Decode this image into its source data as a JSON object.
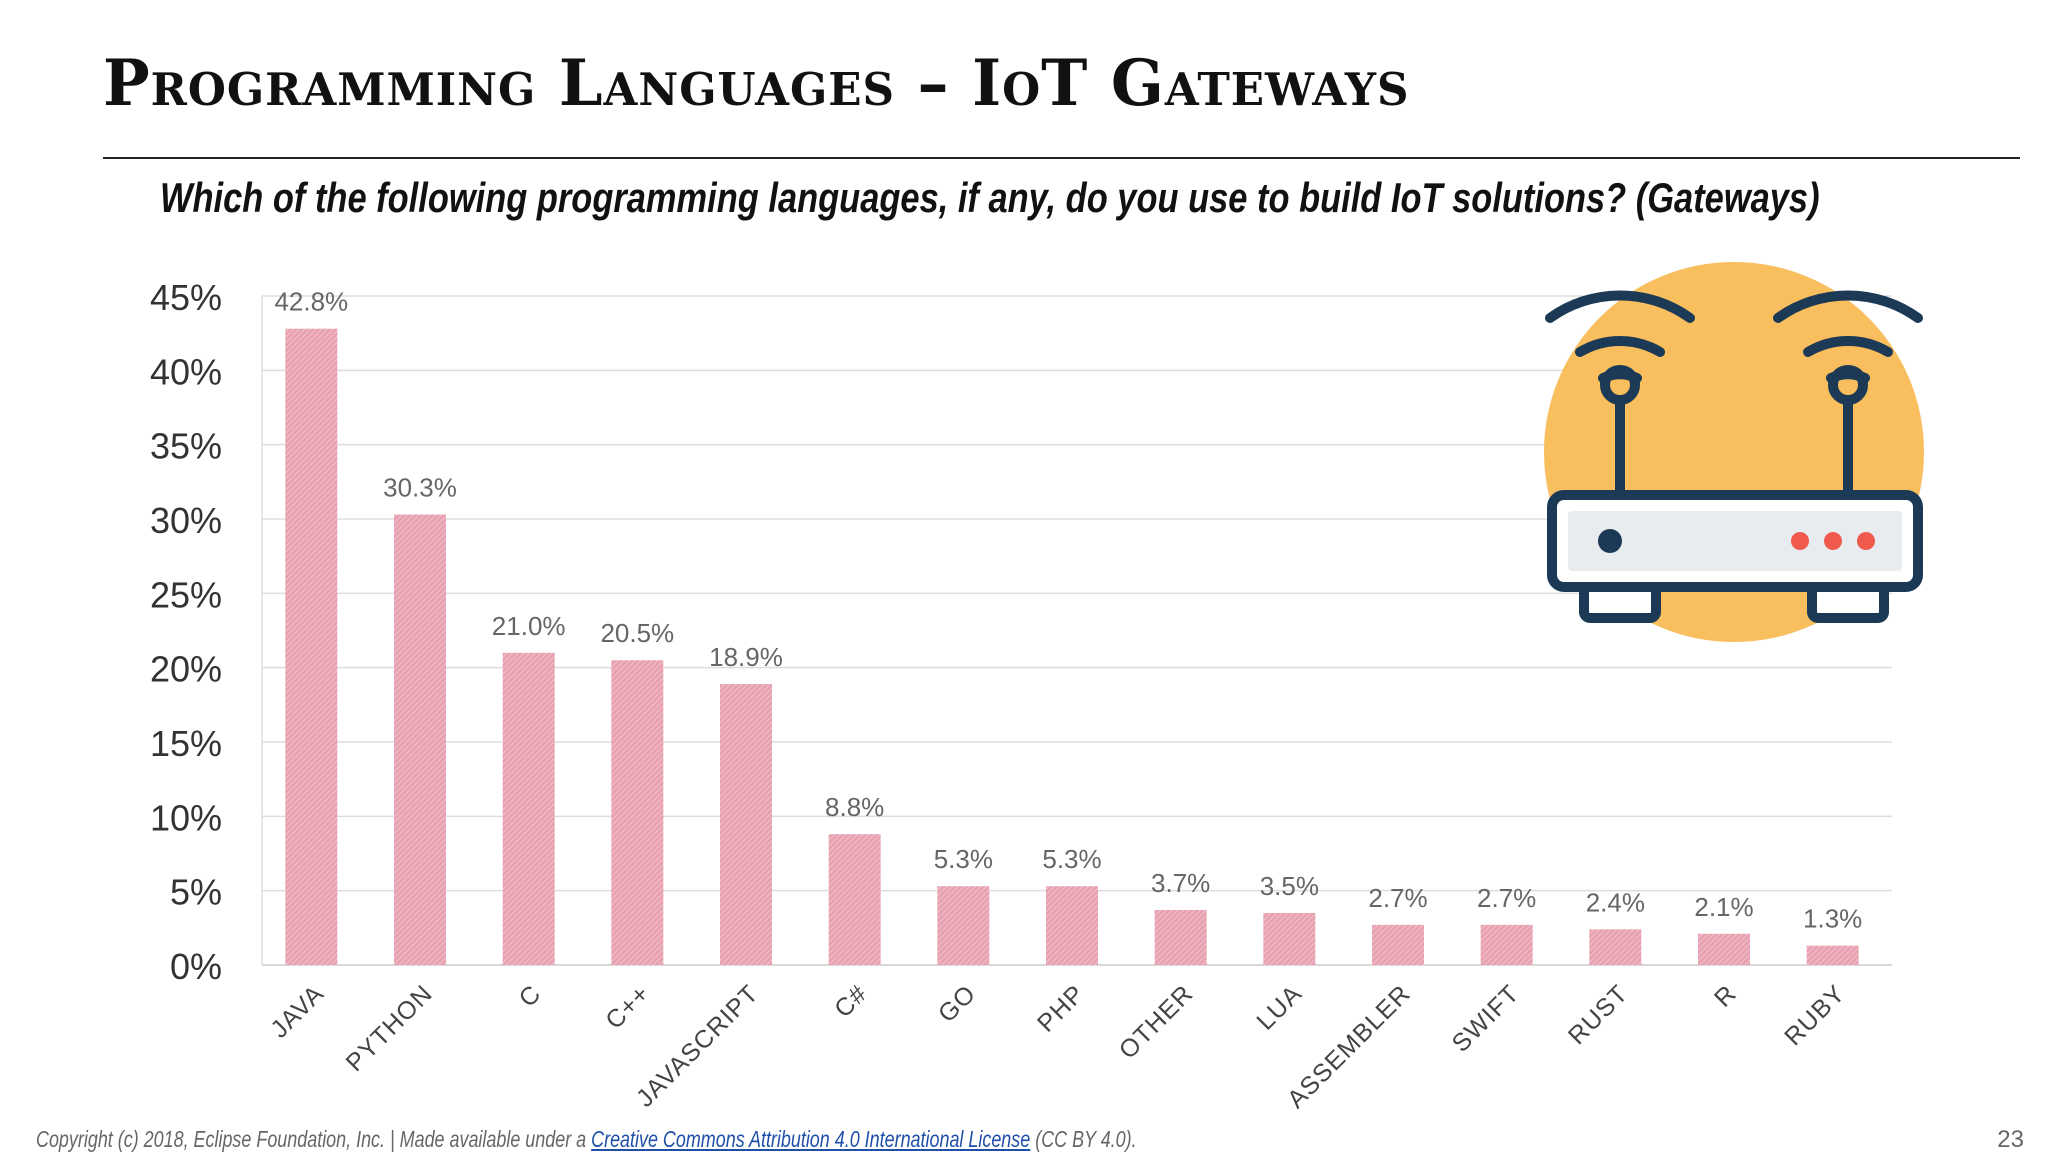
{
  "slide": {
    "title": "Programming Languages – IoT Gateways",
    "subtitle": "Which of the following programming languages, if any, do you use to build IoT solutions? (Gateways)",
    "page_number": "23"
  },
  "footer": {
    "prefix": "Copyright (c) 2018, Eclipse Foundation, Inc. | Made available under a ",
    "link_text": "Creative Commons Attribution 4.0 International License",
    "suffix": " (CC BY 4.0)."
  },
  "illustration": {
    "icon": "router-icon",
    "circle_color": "#F9BE5E",
    "outline_color": "#1C3A55",
    "led_color": "#EF5A4C"
  },
  "chart_data": {
    "type": "bar",
    "title": "",
    "xlabel": "",
    "ylabel": "",
    "ylim": [
      0,
      45
    ],
    "y_ticks": [
      0,
      5,
      10,
      15,
      20,
      25,
      30,
      35,
      40,
      45
    ],
    "y_tick_labels": [
      "0%",
      "5%",
      "10%",
      "15%",
      "20%",
      "25%",
      "30%",
      "35%",
      "40%",
      "45%"
    ],
    "grid": true,
    "bar_color": "#E8A1B0",
    "categories": [
      "JAVA",
      "PYTHON",
      "C",
      "C++",
      "JAVASCRIPT",
      "C#",
      "GO",
      "PHP",
      "OTHER",
      "LUA",
      "ASSEMBLER",
      "SWIFT",
      "RUST",
      "R",
      "RUBY"
    ],
    "values": [
      42.8,
      30.3,
      21.0,
      20.5,
      18.9,
      8.8,
      5.3,
      5.3,
      3.7,
      3.5,
      2.7,
      2.7,
      2.4,
      2.1,
      1.3
    ],
    "data_labels": [
      "42.8%",
      "30.3%",
      "21.0%",
      "20.5%",
      "18.9%",
      "8.8%",
      "5.3%",
      "5.3%",
      "3.7%",
      "3.5%",
      "2.7%",
      "2.7%",
      "2.4%",
      "2.1%",
      "1.3%"
    ]
  }
}
